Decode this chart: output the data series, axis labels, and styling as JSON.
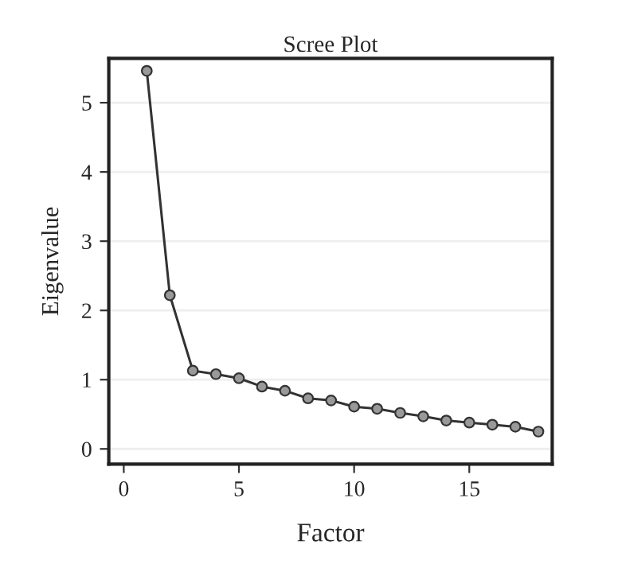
{
  "chart_data": {
    "type": "line",
    "title": "Scree Plot",
    "xlabel": "Factor",
    "ylabel": "Eigenvalue",
    "x": [
      1,
      2,
      3,
      4,
      5,
      6,
      7,
      8,
      9,
      10,
      11,
      12,
      13,
      14,
      15,
      16,
      17,
      18
    ],
    "series": [
      {
        "color": "#333333",
        "values": [
          5.46,
          2.22,
          1.13,
          1.08,
          1.02,
          0.9,
          0.84,
          0.73,
          0.7,
          0.61,
          0.58,
          0.52,
          0.47,
          0.41,
          0.38,
          0.35,
          0.32,
          0.25
        ]
      }
    ],
    "xlim": [
      -0.65,
      18.6
    ],
    "ylim": [
      -0.22,
      5.64
    ],
    "xticks": [
      0,
      5,
      10,
      15
    ],
    "yticks": [
      0,
      1,
      2,
      3,
      4,
      5
    ],
    "grid": "y",
    "marker": "circle",
    "line_style": "solid",
    "legend": false
  }
}
